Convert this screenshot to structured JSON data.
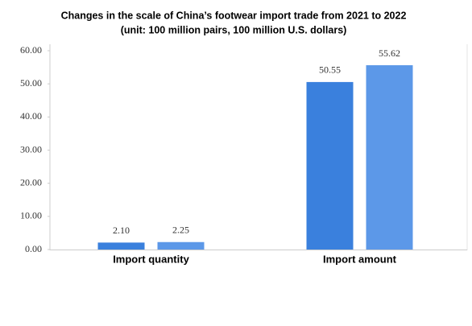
{
  "chart_data": {
    "type": "bar",
    "title": [
      "Changes in the scale of China’s footwear import trade from 2021 to 2022",
      "(unit: 100 million pairs, 100 million U.S. dollars)"
    ],
    "categories": [
      "Import quantity",
      "Import amount"
    ],
    "series": [
      {
        "color": "#3a80dd",
        "values": [
          2.1,
          50.55
        ],
        "value_labels": [
          "2.10",
          "50.55"
        ]
      },
      {
        "color": "#5c98e8",
        "values": [
          2.25,
          55.62
        ],
        "value_labels": [
          "2.25",
          "55.62"
        ]
      }
    ],
    "ylim": [
      0,
      60
    ],
    "yticks": [
      {
        "value": 0,
        "label": "0.00"
      },
      {
        "value": 10,
        "label": "10.00"
      },
      {
        "value": 20,
        "label": "20.00"
      },
      {
        "value": 30,
        "label": "30.00"
      },
      {
        "value": 40,
        "label": "40.00"
      },
      {
        "value": 50,
        "label": "50.00"
      },
      {
        "value": 60,
        "label": "60.00"
      }
    ]
  }
}
